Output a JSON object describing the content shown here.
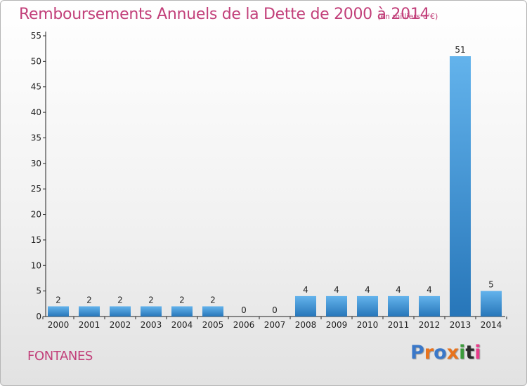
{
  "title": "Remboursements Annuels de la Dette de 2000 à 2014",
  "subtitle": "(en milliers d'€)",
  "commune": "FONTANES",
  "logo_text": "Proxiti",
  "colors": {
    "title": "#c2407a",
    "bar_top": "#63b3ec",
    "bar_bottom": "#2776b9",
    "axis": "#222222",
    "logo": [
      "#3a78c9",
      "#e8731d",
      "#3a78c9",
      "#e8731d",
      "#3a9a3a",
      "#2a2a2a",
      "#e83a8a"
    ]
  },
  "chart_data": {
    "type": "bar",
    "title": "Remboursements Annuels de la Dette de 2000 à 2014",
    "subtitle": "(en milliers d'€)",
    "categories": [
      "2000",
      "2001",
      "2002",
      "2003",
      "2004",
      "2005",
      "2006",
      "2007",
      "2008",
      "2009",
      "2010",
      "2011",
      "2012",
      "2013",
      "2014"
    ],
    "values": [
      2,
      2,
      2,
      2,
      2,
      2,
      0,
      0,
      4,
      4,
      4,
      4,
      4,
      51,
      5
    ],
    "data_labels": [
      "2",
      "2",
      "2",
      "2",
      "2",
      "2",
      "0",
      "0",
      "4",
      "4",
      "4",
      "4",
      "4",
      "51",
      "5"
    ],
    "ylim": [
      0,
      55
    ],
    "yticks": [
      0,
      5,
      10,
      15,
      20,
      25,
      30,
      35,
      40,
      45,
      50,
      55
    ],
    "xlabel": "",
    "ylabel": "",
    "grid": false,
    "legend": "none"
  }
}
